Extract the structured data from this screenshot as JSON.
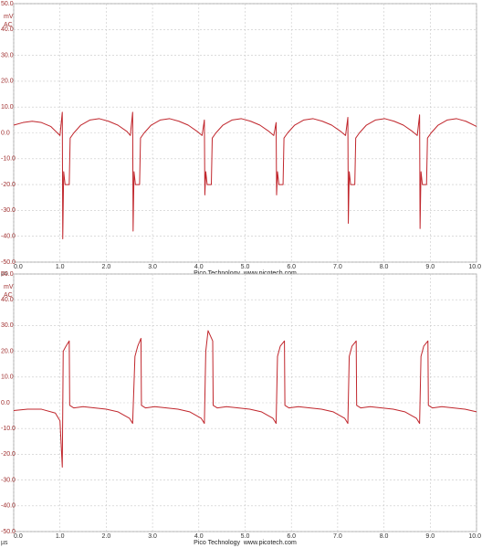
{
  "chart_data": [
    {
      "type": "line",
      "y_unit": "mV",
      "coupling": "AC",
      "x_unit": "µs",
      "footer": "Pico Technology  www.picotech.com",
      "color": "#c0262c",
      "grid": true,
      "xlim": [
        0,
        10
      ],
      "ylim": [
        -50,
        50
      ],
      "xticks": [
        {
          "value": 0,
          "label": "0.0"
        },
        {
          "value": 1,
          "label": "1.0"
        },
        {
          "value": 2,
          "label": "2.0"
        },
        {
          "value": 3,
          "label": "3.0"
        },
        {
          "value": 4,
          "label": "4.0"
        },
        {
          "value": 5,
          "label": "5.0"
        },
        {
          "value": 6,
          "label": "6.0"
        },
        {
          "value": 7,
          "label": "7.0"
        },
        {
          "value": 8,
          "label": "8.0"
        },
        {
          "value": 9,
          "label": "9.0"
        },
        {
          "value": 10,
          "label": "10.0"
        }
      ],
      "yticks": [
        {
          "value": 50,
          "label": "50.0"
        },
        {
          "value": 40,
          "label": "40.0"
        },
        {
          "value": 30,
          "label": "30.0"
        },
        {
          "value": 20,
          "label": "20.0"
        },
        {
          "value": 10,
          "label": "10.0"
        },
        {
          "value": 0,
          "label": "0.0"
        },
        {
          "value": -10,
          "label": "-10.0"
        },
        {
          "value": -20,
          "label": "-20.0"
        },
        {
          "value": -30,
          "label": "-30.0"
        },
        {
          "value": -40,
          "label": "-40.0"
        },
        {
          "value": -50,
          "label": "-50.0"
        }
      ],
      "x": [
        0,
        0.2,
        0.4,
        0.6,
        0.8,
        1.0,
        1.05,
        1.06,
        1.08,
        1.11,
        1.2,
        1.22,
        1.3,
        1.45,
        1.65,
        1.85,
        2.05,
        2.25,
        2.45,
        2.52,
        2.57,
        2.58,
        2.6,
        2.63,
        2.72,
        2.74,
        2.82,
        2.97,
        3.17,
        3.37,
        3.57,
        3.77,
        3.97,
        4.07,
        4.12,
        4.13,
        4.15,
        4.18,
        4.27,
        4.29,
        4.37,
        4.52,
        4.72,
        4.92,
        5.12,
        5.32,
        5.52,
        5.62,
        5.67,
        5.68,
        5.7,
        5.73,
        5.82,
        5.84,
        5.92,
        6.07,
        6.27,
        6.47,
        6.67,
        6.87,
        7.07,
        7.17,
        7.22,
        7.23,
        7.25,
        7.28,
        7.37,
        7.39,
        7.47,
        7.62,
        7.82,
        8.02,
        8.22,
        8.42,
        8.62,
        8.72,
        8.77,
        8.78,
        8.8,
        8.83,
        8.92,
        8.94,
        9.02,
        9.17,
        9.37,
        9.57,
        9.77,
        10.0
      ],
      "values": [
        3,
        4,
        4.5,
        4,
        2.5,
        -1,
        8,
        -41,
        -15,
        -20,
        -20,
        -2,
        0,
        3,
        5,
        5.5,
        4.5,
        3,
        0.5,
        -1,
        8,
        -38,
        -15,
        -20,
        -20,
        -2,
        0,
        3,
        5,
        5.5,
        4.5,
        3,
        0.5,
        -1,
        5,
        -24,
        -15,
        -20,
        -20,
        -2,
        0,
        3,
        5,
        5.5,
        4.5,
        3,
        0.5,
        -1,
        4,
        -24,
        -15,
        -20,
        -20,
        -2,
        0,
        3,
        5,
        5.5,
        4.5,
        3,
        0.5,
        -1,
        6,
        -35,
        -15,
        -20,
        -20,
        -2,
        0,
        3,
        5,
        5.5,
        4.5,
        3,
        0.5,
        -1,
        7,
        -37,
        -15,
        -20,
        -20,
        -2,
        0,
        3,
        5,
        5.5,
        4.5,
        2.5
      ]
    },
    {
      "type": "line",
      "y_unit": "mV",
      "coupling": "AC",
      "x_unit": "µs",
      "footer": "Pico Technology  www.picotech.com",
      "color": "#c0262c",
      "grid": true,
      "xlim": [
        0,
        10
      ],
      "ylim": [
        -50,
        50
      ],
      "xticks": [
        {
          "value": 0,
          "label": "0.0"
        },
        {
          "value": 1,
          "label": "1.0"
        },
        {
          "value": 2,
          "label": "2.0"
        },
        {
          "value": 3,
          "label": "3.0"
        },
        {
          "value": 4,
          "label": "4.0"
        },
        {
          "value": 5,
          "label": "5.0"
        },
        {
          "value": 6,
          "label": "6.0"
        },
        {
          "value": 7,
          "label": "7.0"
        },
        {
          "value": 8,
          "label": "8.0"
        },
        {
          "value": 9,
          "label": "9.0"
        },
        {
          "value": 10,
          "label": "10.0"
        }
      ],
      "yticks": [
        {
          "value": 50,
          "label": "50.0"
        },
        {
          "value": 40,
          "label": "40.0"
        },
        {
          "value": 30,
          "label": "30.0"
        },
        {
          "value": 20,
          "label": "20.0"
        },
        {
          "value": 10,
          "label": "10.0"
        },
        {
          "value": 0,
          "label": "0.0"
        },
        {
          "value": -10,
          "label": "-10.0"
        },
        {
          "value": -20,
          "label": "-20.0"
        },
        {
          "value": -30,
          "label": "-30.0"
        },
        {
          "value": -40,
          "label": "-40.0"
        },
        {
          "value": -50,
          "label": "-50.0"
        }
      ],
      "x": [
        0,
        0.3,
        0.6,
        0.9,
        1.0,
        1.05,
        1.07,
        1.13,
        1.2,
        1.21,
        1.3,
        1.5,
        1.75,
        2.0,
        2.25,
        2.5,
        2.57,
        2.62,
        2.68,
        2.75,
        2.76,
        2.85,
        3.05,
        3.3,
        3.55,
        3.8,
        4.05,
        4.12,
        4.15,
        4.2,
        4.3,
        4.31,
        4.4,
        4.6,
        4.85,
        5.1,
        5.35,
        5.6,
        5.67,
        5.7,
        5.76,
        5.85,
        5.86,
        5.95,
        6.15,
        6.4,
        6.65,
        6.9,
        7.15,
        7.22,
        7.25,
        7.31,
        7.4,
        7.41,
        7.5,
        7.7,
        7.95,
        8.2,
        8.45,
        8.7,
        8.77,
        8.8,
        8.86,
        8.95,
        8.96,
        9.05,
        9.25,
        9.5,
        9.75,
        10.0
      ],
      "values": [
        -3,
        -2.5,
        -2.5,
        -4,
        -7,
        -25,
        20,
        22,
        24,
        -1,
        -2,
        -1.5,
        -2,
        -2.5,
        -3.5,
        -6,
        -8,
        18,
        22,
        25,
        -1,
        -2,
        -1.5,
        -2,
        -2.5,
        -3.5,
        -6,
        -8,
        20,
        28,
        24,
        -1,
        -2,
        -1.5,
        -2,
        -2.5,
        -3.5,
        -6,
        -8,
        18,
        22,
        24,
        -1,
        -2,
        -1.5,
        -2,
        -2.5,
        -3.5,
        -6,
        -8,
        18,
        22,
        24,
        -1,
        -2,
        -1.5,
        -2,
        -2.5,
        -3.5,
        -6,
        -8,
        18,
        22,
        24,
        -1,
        -2,
        -1.5,
        -2,
        -2.5,
        -3.5
      ]
    }
  ]
}
